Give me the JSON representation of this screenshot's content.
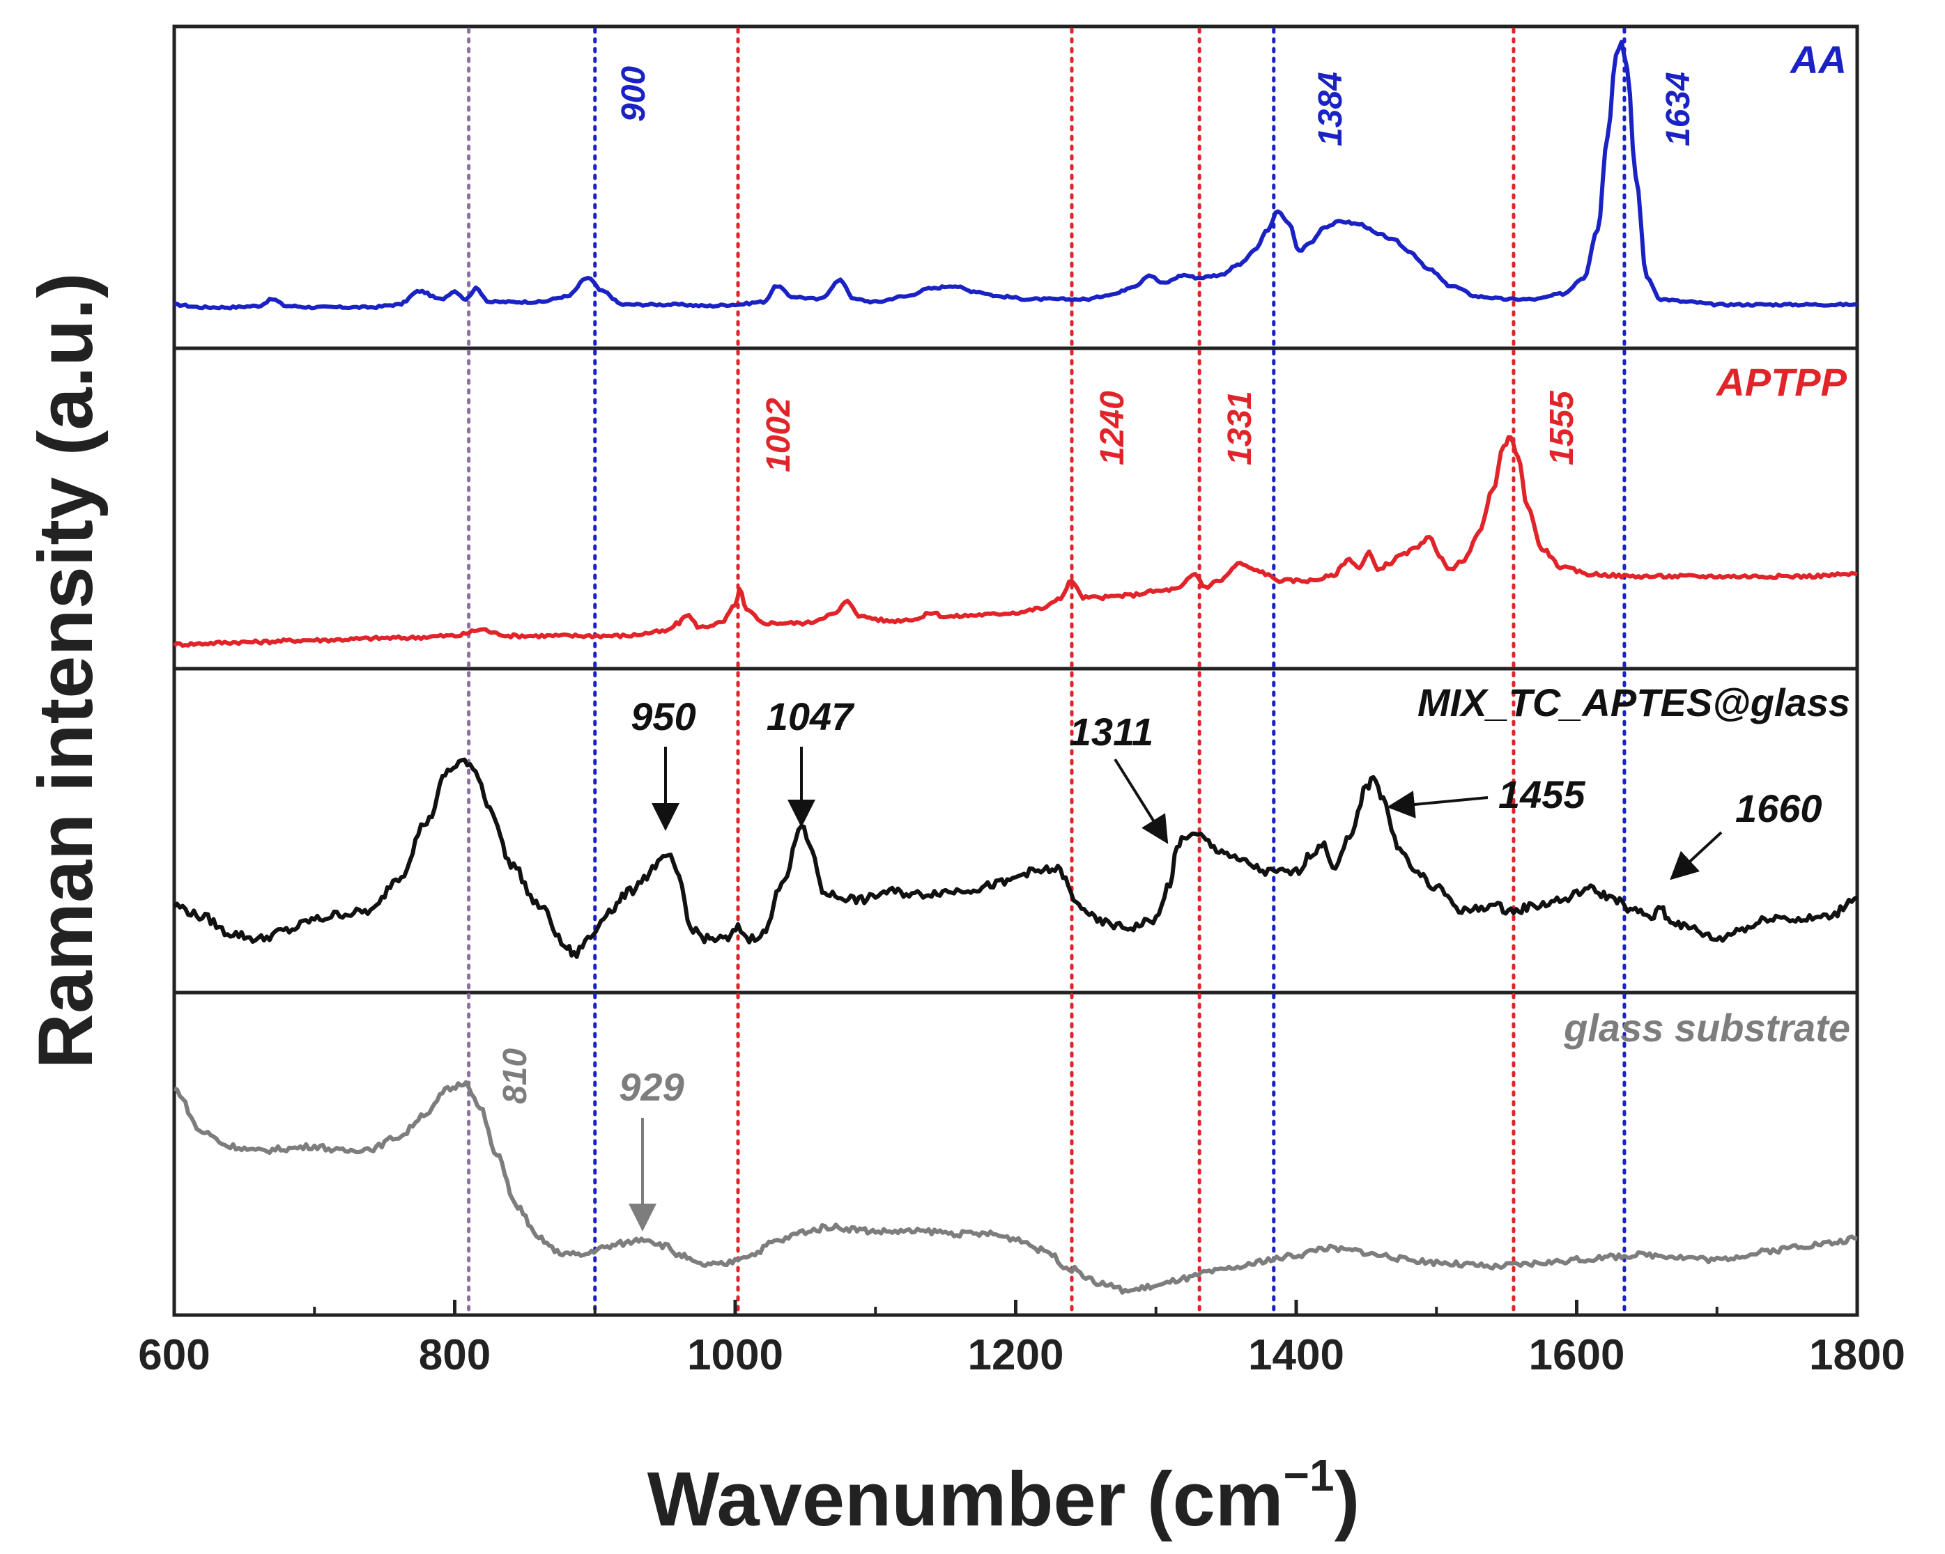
{
  "chart_data": {
    "type": "line",
    "title": "",
    "xlabel": "Wavenumber (cm",
    "xlabel_sup": "−1",
    "xlabel_close": ")",
    "ylabel": "Raman intensity (a.u.)",
    "xlim": [
      600,
      1800
    ],
    "xticks": [
      "600",
      "800",
      "1000",
      "1200",
      "1400",
      "1600",
      "1800"
    ],
    "xtick_values": [
      600,
      800,
      1000,
      1200,
      1400,
      1600,
      1800
    ],
    "colors": {
      "AA": "#1a22c4",
      "APTPP": "#e0242a",
      "MIX": "#111111",
      "glass": "#7d7d7d",
      "frame": "#222222"
    },
    "reference_lines": [
      {
        "x": 810,
        "color": "#8a6fa0",
        "label": ""
      },
      {
        "x": 900,
        "color": "#1a22c4",
        "label": ""
      },
      {
        "x": 1002,
        "color": "#e0242a",
        "label": ""
      },
      {
        "x": 1240,
        "color": "#e0242a",
        "label": ""
      },
      {
        "x": 1331,
        "color": "#e0242a",
        "label": ""
      },
      {
        "x": 1384,
        "color": "#1a22c4",
        "label": ""
      },
      {
        "x": 1555,
        "color": "#e0242a",
        "label": ""
      },
      {
        "x": 1634,
        "color": "#1a22c4",
        "label": ""
      }
    ],
    "series": [
      {
        "name": "AA",
        "color": "#1a22c4",
        "x": [
          600,
          620,
          640,
          660,
          670,
          680,
          700,
          720,
          740,
          760,
          775,
          790,
          800,
          808,
          815,
          825,
          840,
          860,
          880,
          895,
          905,
          920,
          940,
          960,
          980,
          1000,
          1020,
          1030,
          1040,
          1060,
          1075,
          1085,
          1100,
          1120,
          1140,
          1155,
          1170,
          1190,
          1210,
          1230,
          1250,
          1270,
          1285,
          1295,
          1305,
          1320,
          1330,
          1345,
          1360,
          1370,
          1380,
          1387,
          1395,
          1402,
          1410,
          1420,
          1432,
          1445,
          1460,
          1470,
          1480,
          1495,
          1510,
          1530,
          1550,
          1570,
          1590,
          1605,
          1615,
          1622,
          1628,
          1632,
          1636,
          1642,
          1650,
          1660,
          1680,
          1700,
          1720,
          1750,
          1780,
          1800
        ],
        "y": [
          0.02,
          0.01,
          0.01,
          0.015,
          0.04,
          0.015,
          0.01,
          0.01,
          0.01,
          0.02,
          0.07,
          0.04,
          0.07,
          0.04,
          0.08,
          0.03,
          0.03,
          0.03,
          0.05,
          0.12,
          0.07,
          0.02,
          0.02,
          0.02,
          0.015,
          0.02,
          0.03,
          0.09,
          0.05,
          0.04,
          0.11,
          0.04,
          0.03,
          0.05,
          0.08,
          0.09,
          0.07,
          0.05,
          0.04,
          0.04,
          0.04,
          0.06,
          0.09,
          0.13,
          0.1,
          0.13,
          0.12,
          0.13,
          0.17,
          0.22,
          0.3,
          0.37,
          0.32,
          0.22,
          0.25,
          0.31,
          0.33,
          0.32,
          0.28,
          0.26,
          0.22,
          0.15,
          0.09,
          0.05,
          0.04,
          0.04,
          0.06,
          0.12,
          0.3,
          0.65,
          0.95,
          1.0,
          0.9,
          0.5,
          0.12,
          0.04,
          0.03,
          0.02,
          0.02,
          0.02,
          0.02,
          0.02
        ]
      },
      {
        "name": "APTPP",
        "color": "#e0242a",
        "x": [
          600,
          650,
          700,
          760,
          800,
          820,
          830,
          840,
          880,
          920,
          950,
          960,
          965,
          975,
          990,
          1000,
          1003,
          1008,
          1020,
          1050,
          1070,
          1080,
          1090,
          1110,
          1130,
          1140,
          1150,
          1180,
          1200,
          1220,
          1232,
          1240,
          1248,
          1260,
          1280,
          1300,
          1315,
          1328,
          1335,
          1345,
          1360,
          1370,
          1390,
          1410,
          1425,
          1438,
          1445,
          1452,
          1458,
          1466,
          1475,
          1485,
          1495,
          1502,
          1510,
          1520,
          1530,
          1540,
          1548,
          1553,
          1558,
          1565,
          1575,
          1590,
          1610,
          1640,
          1680,
          1720,
          1760,
          1800
        ],
        "y": [
          0.0,
          0.01,
          0.02,
          0.03,
          0.04,
          0.07,
          0.05,
          0.04,
          0.04,
          0.04,
          0.06,
          0.1,
          0.14,
          0.08,
          0.1,
          0.18,
          0.26,
          0.16,
          0.1,
          0.1,
          0.14,
          0.2,
          0.13,
          0.11,
          0.12,
          0.15,
          0.13,
          0.14,
          0.15,
          0.17,
          0.22,
          0.3,
          0.22,
          0.22,
          0.23,
          0.25,
          0.26,
          0.33,
          0.27,
          0.3,
          0.38,
          0.35,
          0.3,
          0.3,
          0.32,
          0.4,
          0.36,
          0.43,
          0.35,
          0.38,
          0.42,
          0.45,
          0.5,
          0.42,
          0.35,
          0.4,
          0.52,
          0.72,
          0.93,
          0.98,
          0.88,
          0.65,
          0.45,
          0.36,
          0.33,
          0.32,
          0.32,
          0.32,
          0.32,
          0.33
        ]
      },
      {
        "name": "MIX_TC_APTES@glass",
        "color": "#111111",
        "x": [
          600,
          620,
          640,
          660,
          680,
          700,
          720,
          740,
          760,
          780,
          795,
          805,
          815,
          825,
          840,
          860,
          880,
          885,
          895,
          910,
          925,
          935,
          945,
          952,
          960,
          968,
          980,
          995,
          1002,
          1010,
          1020,
          1035,
          1047,
          1055,
          1062,
          1075,
          1090,
          1110,
          1130,
          1150,
          1170,
          1190,
          1210,
          1230,
          1245,
          1260,
          1280,
          1300,
          1310,
          1315,
          1320,
          1330,
          1345,
          1360,
          1380,
          1400,
          1410,
          1418,
          1428,
          1438,
          1450,
          1455,
          1462,
          1472,
          1485,
          1500,
          1520,
          1540,
          1555,
          1570,
          1590,
          1608,
          1625,
          1640,
          1655,
          1660,
          1665,
          1680,
          1700,
          1720,
          1740,
          1760,
          1780,
          1800
        ],
        "y": [
          0.3,
          0.26,
          0.2,
          0.18,
          0.21,
          0.25,
          0.27,
          0.28,
          0.4,
          0.6,
          0.78,
          0.82,
          0.78,
          0.65,
          0.45,
          0.3,
          0.15,
          0.12,
          0.18,
          0.28,
          0.35,
          0.4,
          0.45,
          0.48,
          0.4,
          0.22,
          0.18,
          0.18,
          0.22,
          0.18,
          0.2,
          0.4,
          0.58,
          0.5,
          0.35,
          0.33,
          0.32,
          0.35,
          0.34,
          0.35,
          0.36,
          0.38,
          0.42,
          0.43,
          0.3,
          0.24,
          0.22,
          0.25,
          0.38,
          0.5,
          0.55,
          0.55,
          0.5,
          0.46,
          0.42,
          0.42,
          0.48,
          0.52,
          0.44,
          0.54,
          0.72,
          0.77,
          0.68,
          0.52,
          0.42,
          0.36,
          0.28,
          0.3,
          0.28,
          0.3,
          0.32,
          0.36,
          0.33,
          0.28,
          0.26,
          0.3,
          0.25,
          0.22,
          0.18,
          0.22,
          0.26,
          0.25,
          0.26,
          0.33
        ]
      },
      {
        "name": "glass substrate",
        "color": "#7d7d7d",
        "x": [
          600,
          620,
          640,
          660,
          680,
          700,
          720,
          740,
          760,
          780,
          795,
          808,
          818,
          830,
          845,
          860,
          875,
          890,
          905,
          920,
          935,
          950,
          960,
          975,
          990,
          1010,
          1030,
          1050,
          1068,
          1085,
          1100,
          1120,
          1140,
          1160,
          1180,
          1200,
          1220,
          1240,
          1260,
          1280,
          1300,
          1320,
          1340,
          1360,
          1380,
          1400,
          1420,
          1440,
          1460,
          1480,
          1500,
          1520,
          1540,
          1560,
          1580,
          1600,
          1620,
          1640,
          1660,
          1680,
          1700,
          1720,
          1740,
          1760,
          1780,
          1800
        ],
        "y": [
          0.9,
          0.72,
          0.66,
          0.64,
          0.65,
          0.66,
          0.64,
          0.65,
          0.7,
          0.8,
          0.9,
          0.93,
          0.82,
          0.62,
          0.4,
          0.27,
          0.21,
          0.2,
          0.23,
          0.25,
          0.27,
          0.24,
          0.2,
          0.16,
          0.16,
          0.2,
          0.26,
          0.3,
          0.32,
          0.31,
          0.3,
          0.3,
          0.3,
          0.29,
          0.29,
          0.27,
          0.22,
          0.14,
          0.08,
          0.05,
          0.07,
          0.1,
          0.13,
          0.15,
          0.18,
          0.2,
          0.23,
          0.22,
          0.2,
          0.18,
          0.17,
          0.16,
          0.15,
          0.16,
          0.17,
          0.18,
          0.19,
          0.2,
          0.2,
          0.19,
          0.18,
          0.2,
          0.22,
          0.24,
          0.25,
          0.27
        ]
      }
    ],
    "panel_labels": {
      "AA": "AA",
      "APTPP": "APTPP",
      "MIX": "MIX_TC_APTES@glass",
      "glass": "glass substrate"
    },
    "vline_labels": {
      "l900": "900",
      "l1384": "1384",
      "l1634": "1634",
      "l1002": "1002",
      "l1240": "1240",
      "l1331": "1331",
      "l1555": "1555",
      "l810": "810"
    },
    "peak_annotations": {
      "p950": "950",
      "p1047": "1047",
      "p1311": "1311",
      "p1455": "1455",
      "p1660": "1660",
      "p929": "929"
    }
  }
}
